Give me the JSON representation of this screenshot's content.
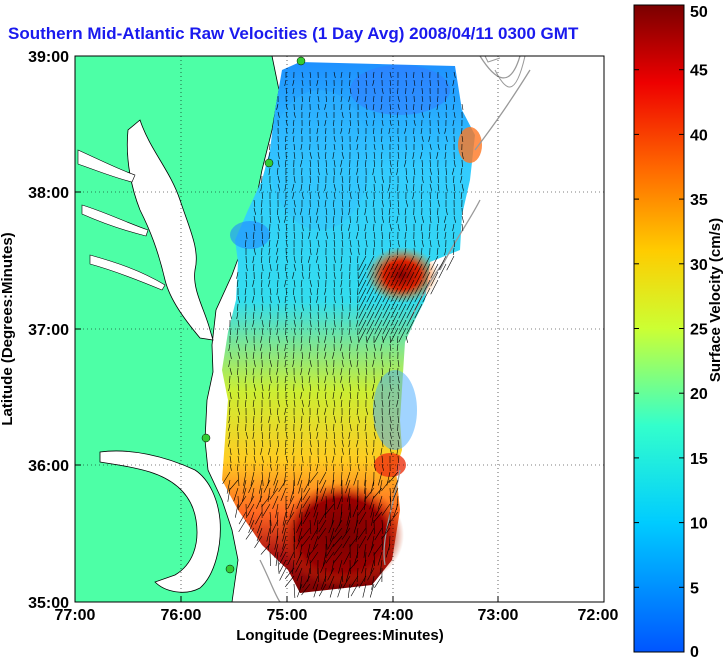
{
  "figure": {
    "title": "Southern Mid-Atlantic Raw Velocities (1 Day Avg) 2008/04/11 0300 GMT",
    "xlabel": "Longitude (Degrees:Minutes)",
    "ylabel": "Latitude (Degrees:Minutes)",
    "colorbar_label": "Surface Velocity (cm/s)",
    "colors": {
      "title": "#1a1aee",
      "land": "#4dffa6",
      "water": "#ffffff",
      "vectors": "#000000",
      "stations": "#33cc33",
      "bathymetry": "#999999"
    }
  },
  "chart_data": {
    "type": "heatmap",
    "x_ticks": [
      "77:00",
      "76:00",
      "75:00",
      "74:00",
      "73:00",
      "72:00"
    ],
    "y_ticks": [
      "39:00",
      "38:00",
      "37:00",
      "36:00",
      "35:00"
    ],
    "x_range_deg": [
      -77,
      -72
    ],
    "y_range_deg": [
      35,
      39
    ],
    "colorbar": {
      "min": 0,
      "max": 50,
      "ticks": [
        "50",
        "45",
        "40",
        "35",
        "30",
        "25",
        "20",
        "15",
        "10",
        "5",
        "0"
      ]
    },
    "grid": "dotted",
    "regions": [
      {
        "area": "north offshore",
        "speed_cm_s": 6
      },
      {
        "area": "central offshore",
        "speed_cm_s": 12
      },
      {
        "area": "east offshore near 37:15",
        "speed_cm_s": 45
      },
      {
        "area": "south near 35:20",
        "speed_cm_s": 48
      }
    ]
  }
}
